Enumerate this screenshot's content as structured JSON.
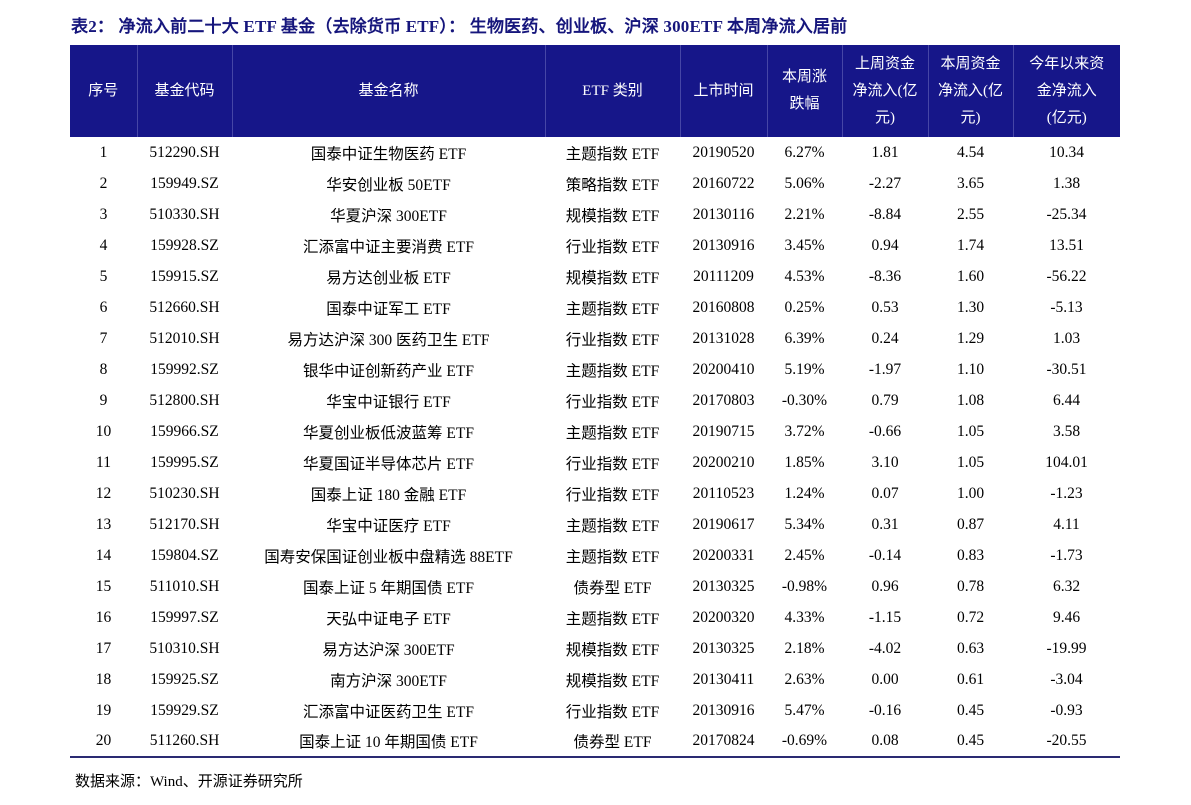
{
  "title": "表2：  净流入前二十大 ETF 基金（去除货币 ETF）：  生物医药、创业板、沪深 300ETF 本周净流入居前",
  "source": "数据来源：Wind、开源证券研究所",
  "colors": {
    "header_bg": "#161689",
    "header_text": "#ffffff",
    "title_text": "#16167c",
    "body_text": "#000000",
    "table_bottom_border": "#2a2a72"
  },
  "table": {
    "headers": [
      "序号",
      "基金代码",
      "基金名称",
      "ETF 类别",
      "上市时间",
      "本周涨\n跌幅",
      "上周资金\n净流入(亿\n元)",
      "本周资金\n净流入(亿\n元)",
      "今年以来资\n金净流入\n(亿元)"
    ],
    "rows": [
      [
        "1",
        "512290.SH",
        "国泰中证生物医药 ETF",
        "主题指数 ETF",
        "20190520",
        "6.27%",
        "1.81",
        "4.54",
        "10.34"
      ],
      [
        "2",
        "159949.SZ",
        "华安创业板 50ETF",
        "策略指数 ETF",
        "20160722",
        "5.06%",
        "-2.27",
        "3.65",
        "1.38"
      ],
      [
        "3",
        "510330.SH",
        "华夏沪深 300ETF",
        "规模指数 ETF",
        "20130116",
        "2.21%",
        "-8.84",
        "2.55",
        "-25.34"
      ],
      [
        "4",
        "159928.SZ",
        "汇添富中证主要消费 ETF",
        "行业指数 ETF",
        "20130916",
        "3.45%",
        "0.94",
        "1.74",
        "13.51"
      ],
      [
        "5",
        "159915.SZ",
        "易方达创业板 ETF",
        "规模指数 ETF",
        "20111209",
        "4.53%",
        "-8.36",
        "1.60",
        "-56.22"
      ],
      [
        "6",
        "512660.SH",
        "国泰中证军工 ETF",
        "主题指数 ETF",
        "20160808",
        "0.25%",
        "0.53",
        "1.30",
        "-5.13"
      ],
      [
        "7",
        "512010.SH",
        "易方达沪深 300 医药卫生 ETF",
        "行业指数 ETF",
        "20131028",
        "6.39%",
        "0.24",
        "1.29",
        "1.03"
      ],
      [
        "8",
        "159992.SZ",
        "银华中证创新药产业 ETF",
        "主题指数 ETF",
        "20200410",
        "5.19%",
        "-1.97",
        "1.10",
        "-30.51"
      ],
      [
        "9",
        "512800.SH",
        "华宝中证银行 ETF",
        "行业指数 ETF",
        "20170803",
        "-0.30%",
        "0.79",
        "1.08",
        "6.44"
      ],
      [
        "10",
        "159966.SZ",
        "华夏创业板低波蓝筹 ETF",
        "主题指数 ETF",
        "20190715",
        "3.72%",
        "-0.66",
        "1.05",
        "3.58"
      ],
      [
        "11",
        "159995.SZ",
        "华夏国证半导体芯片 ETF",
        "行业指数 ETF",
        "20200210",
        "1.85%",
        "3.10",
        "1.05",
        "104.01"
      ],
      [
        "12",
        "510230.SH",
        "国泰上证 180 金融 ETF",
        "行业指数 ETF",
        "20110523",
        "1.24%",
        "0.07",
        "1.00",
        "-1.23"
      ],
      [
        "13",
        "512170.SH",
        "华宝中证医疗 ETF",
        "主题指数 ETF",
        "20190617",
        "5.34%",
        "0.31",
        "0.87",
        "4.11"
      ],
      [
        "14",
        "159804.SZ",
        "国寿安保国证创业板中盘精选 88ETF",
        "主题指数 ETF",
        "20200331",
        "2.45%",
        "-0.14",
        "0.83",
        "-1.73"
      ],
      [
        "15",
        "511010.SH",
        "国泰上证 5 年期国债 ETF",
        "债券型 ETF",
        "20130325",
        "-0.98%",
        "0.96",
        "0.78",
        "6.32"
      ],
      [
        "16",
        "159997.SZ",
        "天弘中证电子 ETF",
        "主题指数 ETF",
        "20200320",
        "4.33%",
        "-1.15",
        "0.72",
        "9.46"
      ],
      [
        "17",
        "510310.SH",
        "易方达沪深 300ETF",
        "规模指数 ETF",
        "20130325",
        "2.18%",
        "-4.02",
        "0.63",
        "-19.99"
      ],
      [
        "18",
        "159925.SZ",
        "南方沪深 300ETF",
        "规模指数 ETF",
        "20130411",
        "2.63%",
        "0.00",
        "0.61",
        "-3.04"
      ],
      [
        "19",
        "159929.SZ",
        "汇添富中证医药卫生 ETF",
        "行业指数 ETF",
        "20130916",
        "5.47%",
        "-0.16",
        "0.45",
        "-0.93"
      ],
      [
        "20",
        "511260.SH",
        "国泰上证 10 年期国债 ETF",
        "债券型 ETF",
        "20170824",
        "-0.69%",
        "0.08",
        "0.45",
        "-20.55"
      ]
    ]
  }
}
